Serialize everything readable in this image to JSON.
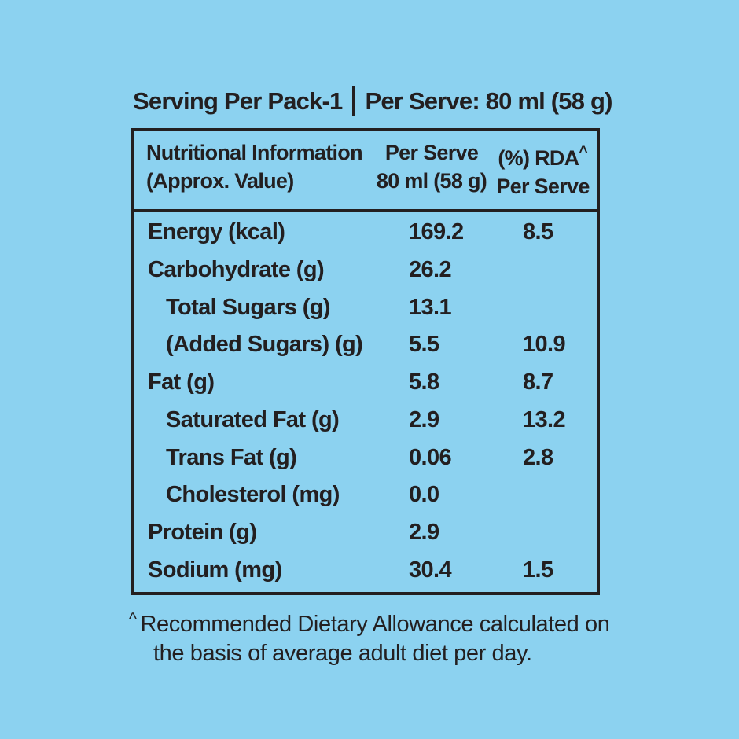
{
  "colors": {
    "background": "#8cd2f0",
    "text": "#231f20",
    "border": "#231f20"
  },
  "title": {
    "left": "Serving Per Pack-1",
    "right": "Per Serve: 80 ml (58 g)"
  },
  "table": {
    "header": {
      "col1_line1": "Nutritional Information",
      "col1_line2": "(Approx. Value)",
      "col2_line1": "Per Serve",
      "col2_line2": "80 ml (58 g)",
      "col3_line1": "(%) RDA",
      "col3_sup": "^",
      "col3_line2": "Per Serve"
    },
    "rows": [
      {
        "label": "Energy (kcal)",
        "per_serve": "169.2",
        "rda": "8.5"
      },
      {
        "label": "Carbohydrate (g)",
        "per_serve": "26.2",
        "rda": ""
      },
      {
        "label": "Total Sugars (g)",
        "per_serve": "13.1",
        "rda": ""
      },
      {
        "label": "(Added Sugars) (g)",
        "per_serve": "5.5",
        "rda": "10.9"
      },
      {
        "label": "Fat (g)",
        "per_serve": "5.8",
        "rda": "8.7"
      },
      {
        "label": "Saturated Fat (g)",
        "per_serve": "2.9",
        "rda": "13.2"
      },
      {
        "label": "Trans Fat (g)",
        "per_serve": "0.06",
        "rda": "2.8"
      },
      {
        "label": "Cholesterol (mg)",
        "per_serve": "0.0",
        "rda": ""
      },
      {
        "label": "Protein (g)",
        "per_serve": "2.9",
        "rda": ""
      },
      {
        "label": "Sodium (mg)",
        "per_serve": "30.4",
        "rda": "1.5"
      }
    ]
  },
  "footnote": {
    "sup": "^",
    "line1": "Recommended Dietary Allowance calculated on",
    "line2": "the basis of average adult diet per day."
  }
}
